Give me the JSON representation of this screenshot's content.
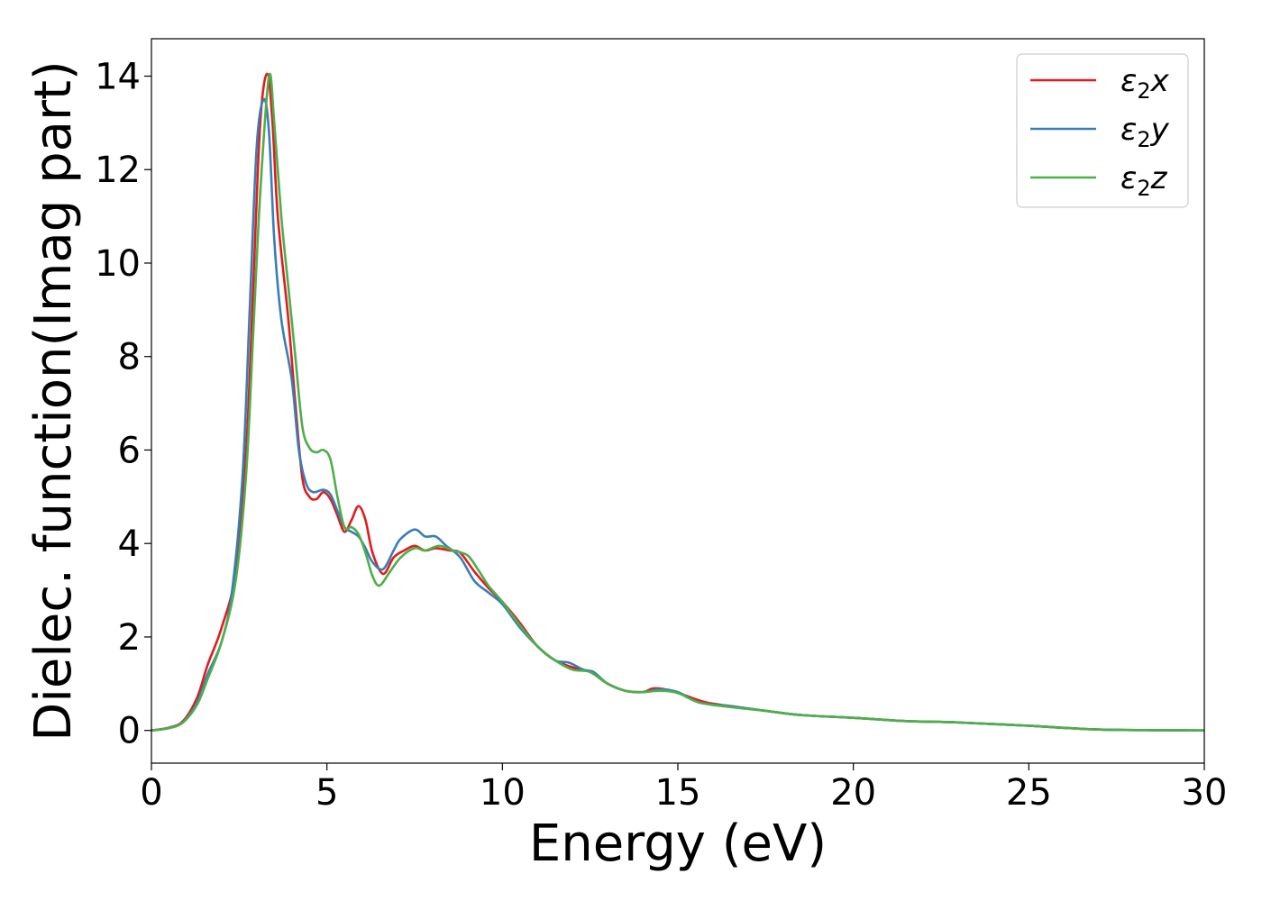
{
  "chart_data": {
    "type": "line",
    "title": "",
    "xlabel": "Energy (eV)",
    "ylabel": "Dielec. function(Imag part)",
    "xlim": [
      0,
      30
    ],
    "ylim": [
      -0.7,
      14.8
    ],
    "xticks": [
      0,
      5,
      10,
      15,
      20,
      25,
      30
    ],
    "yticks": [
      0,
      2,
      4,
      6,
      8,
      10,
      12,
      14
    ],
    "grid": false,
    "legend_placement": "top-right",
    "series": [
      {
        "name": "ε₂x",
        "legend_main": "ε",
        "legend_sub": "2",
        "legend_tail": "x",
        "color": "#e41a1c",
        "points": [
          [
            0,
            0
          ],
          [
            0.5,
            0.06
          ],
          [
            0.9,
            0.2
          ],
          [
            1.3,
            0.7
          ],
          [
            1.6,
            1.4
          ],
          [
            2.0,
            2.2
          ],
          [
            2.4,
            3.4
          ],
          [
            2.7,
            6.0
          ],
          [
            2.9,
            9.5
          ],
          [
            3.1,
            13.0
          ],
          [
            3.3,
            14.05
          ],
          [
            3.45,
            13.0
          ],
          [
            3.6,
            11.0
          ],
          [
            3.9,
            8.8
          ],
          [
            4.1,
            7.0
          ],
          [
            4.3,
            5.4
          ],
          [
            4.5,
            5.0
          ],
          [
            4.7,
            4.95
          ],
          [
            4.9,
            5.1
          ],
          [
            5.1,
            4.95
          ],
          [
            5.3,
            4.6
          ],
          [
            5.5,
            4.25
          ],
          [
            5.7,
            4.5
          ],
          [
            5.9,
            4.8
          ],
          [
            6.1,
            4.5
          ],
          [
            6.3,
            3.8
          ],
          [
            6.6,
            3.35
          ],
          [
            6.9,
            3.7
          ],
          [
            7.2,
            3.85
          ],
          [
            7.5,
            3.95
          ],
          [
            7.8,
            3.85
          ],
          [
            8.1,
            3.9
          ],
          [
            8.5,
            3.85
          ],
          [
            8.8,
            3.8
          ],
          [
            9.2,
            3.4
          ],
          [
            9.6,
            3.05
          ],
          [
            10.0,
            2.75
          ],
          [
            10.5,
            2.3
          ],
          [
            11.0,
            1.8
          ],
          [
            11.5,
            1.5
          ],
          [
            12.0,
            1.35
          ],
          [
            12.5,
            1.25
          ],
          [
            13.0,
            1.0
          ],
          [
            13.5,
            0.85
          ],
          [
            14.0,
            0.82
          ],
          [
            14.3,
            0.9
          ],
          [
            14.7,
            0.87
          ],
          [
            15.2,
            0.75
          ],
          [
            15.8,
            0.6
          ],
          [
            16.5,
            0.52
          ],
          [
            17.5,
            0.42
          ],
          [
            18.5,
            0.33
          ],
          [
            20.0,
            0.27
          ],
          [
            21.5,
            0.2
          ],
          [
            23.0,
            0.17
          ],
          [
            25.0,
            0.1
          ],
          [
            27.0,
            0.02
          ],
          [
            30.0,
            0.0
          ]
        ]
      },
      {
        "name": "ε₂y",
        "legend_main": "ε",
        "legend_sub": "2",
        "legend_tail": "y",
        "color": "#377eb8",
        "points": [
          [
            0,
            0
          ],
          [
            0.5,
            0.05
          ],
          [
            0.9,
            0.18
          ],
          [
            1.3,
            0.6
          ],
          [
            1.6,
            1.2
          ],
          [
            2.0,
            1.9
          ],
          [
            2.3,
            3.0
          ],
          [
            2.6,
            5.5
          ],
          [
            2.8,
            9.0
          ],
          [
            3.0,
            12.5
          ],
          [
            3.2,
            13.5
          ],
          [
            3.35,
            12.8
          ],
          [
            3.5,
            10.5
          ],
          [
            3.7,
            8.8
          ],
          [
            4.0,
            7.5
          ],
          [
            4.2,
            6.0
          ],
          [
            4.4,
            5.3
          ],
          [
            4.6,
            5.1
          ],
          [
            4.9,
            5.15
          ],
          [
            5.1,
            5.05
          ],
          [
            5.3,
            4.7
          ],
          [
            5.5,
            4.35
          ],
          [
            5.7,
            4.25
          ],
          [
            5.9,
            4.15
          ],
          [
            6.1,
            3.9
          ],
          [
            6.3,
            3.6
          ],
          [
            6.6,
            3.45
          ],
          [
            6.9,
            3.85
          ],
          [
            7.1,
            4.1
          ],
          [
            7.5,
            4.3
          ],
          [
            7.8,
            4.15
          ],
          [
            8.1,
            4.15
          ],
          [
            8.4,
            3.95
          ],
          [
            8.8,
            3.7
          ],
          [
            9.2,
            3.2
          ],
          [
            9.6,
            2.95
          ],
          [
            10.0,
            2.7
          ],
          [
            10.5,
            2.2
          ],
          [
            11.0,
            1.8
          ],
          [
            11.5,
            1.5
          ],
          [
            11.9,
            1.45
          ],
          [
            12.3,
            1.3
          ],
          [
            12.6,
            1.25
          ],
          [
            13.0,
            1.0
          ],
          [
            13.5,
            0.85
          ],
          [
            14.0,
            0.82
          ],
          [
            14.5,
            0.88
          ],
          [
            15.0,
            0.82
          ],
          [
            15.6,
            0.6
          ],
          [
            16.5,
            0.52
          ],
          [
            17.5,
            0.42
          ],
          [
            18.5,
            0.33
          ],
          [
            20.0,
            0.27
          ],
          [
            21.5,
            0.2
          ],
          [
            23.0,
            0.17
          ],
          [
            25.0,
            0.1
          ],
          [
            27.0,
            0.02
          ],
          [
            30.0,
            0.0
          ]
        ]
      },
      {
        "name": "ε₂z",
        "legend_main": "ε",
        "legend_sub": "2",
        "legend_tail": "z",
        "color": "#4daf4a",
        "points": [
          [
            0,
            0
          ],
          [
            0.5,
            0.05
          ],
          [
            0.9,
            0.17
          ],
          [
            1.3,
            0.55
          ],
          [
            1.6,
            1.1
          ],
          [
            2.0,
            1.9
          ],
          [
            2.4,
            3.2
          ],
          [
            2.7,
            5.5
          ],
          [
            2.9,
            8.5
          ],
          [
            3.1,
            11.5
          ],
          [
            3.35,
            14.0
          ],
          [
            3.5,
            13.0
          ],
          [
            3.7,
            11.0
          ],
          [
            3.9,
            9.5
          ],
          [
            4.1,
            8.0
          ],
          [
            4.3,
            6.5
          ],
          [
            4.5,
            6.05
          ],
          [
            4.7,
            5.95
          ],
          [
            4.9,
            6.0
          ],
          [
            5.1,
            5.8
          ],
          [
            5.3,
            5.0
          ],
          [
            5.5,
            4.35
          ],
          [
            5.7,
            4.35
          ],
          [
            5.9,
            4.2
          ],
          [
            6.1,
            3.8
          ],
          [
            6.3,
            3.3
          ],
          [
            6.5,
            3.1
          ],
          [
            6.8,
            3.4
          ],
          [
            7.1,
            3.7
          ],
          [
            7.5,
            3.9
          ],
          [
            7.8,
            3.85
          ],
          [
            8.2,
            3.95
          ],
          [
            8.6,
            3.85
          ],
          [
            9.0,
            3.75
          ],
          [
            9.3,
            3.45
          ],
          [
            9.6,
            3.1
          ],
          [
            10.0,
            2.75
          ],
          [
            10.5,
            2.25
          ],
          [
            11.0,
            1.8
          ],
          [
            11.5,
            1.5
          ],
          [
            12.0,
            1.3
          ],
          [
            12.5,
            1.25
          ],
          [
            13.0,
            1.0
          ],
          [
            13.5,
            0.85
          ],
          [
            14.0,
            0.82
          ],
          [
            14.5,
            0.85
          ],
          [
            15.0,
            0.8
          ],
          [
            15.6,
            0.6
          ],
          [
            16.5,
            0.5
          ],
          [
            17.5,
            0.42
          ],
          [
            18.5,
            0.33
          ],
          [
            20.0,
            0.27
          ],
          [
            21.5,
            0.2
          ],
          [
            23.0,
            0.17
          ],
          [
            25.0,
            0.1
          ],
          [
            27.0,
            0.02
          ],
          [
            30.0,
            0.0
          ]
        ]
      }
    ]
  }
}
